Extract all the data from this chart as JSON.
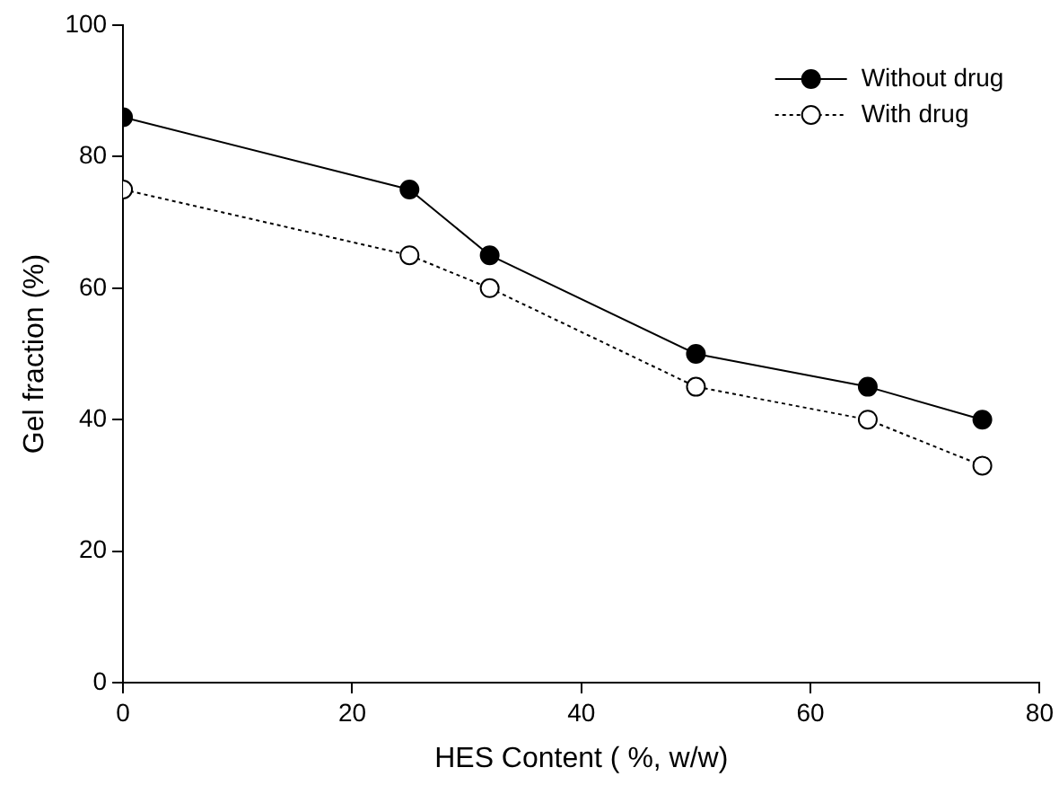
{
  "chart_data": {
    "type": "line",
    "xlabel": "HES Content ( %, w/w)",
    "ylabel": "Gel fraction (%)",
    "x": [
      0,
      25,
      32,
      50,
      65,
      75
    ],
    "series": [
      {
        "name": "Without drug",
        "color": "#000000",
        "values": [
          86,
          75,
          65,
          50,
          45,
          40
        ],
        "line_style": "solid"
      },
      {
        "name": "With drug",
        "color": "#000000",
        "values": [
          75,
          65,
          60,
          45,
          40,
          33
        ],
        "line_style": "dotted"
      }
    ],
    "xlim": [
      0,
      80
    ],
    "xticks": [
      0,
      20,
      40,
      60,
      80
    ],
    "ylim": [
      0,
      100
    ],
    "yticks": [
      0,
      20,
      40,
      60,
      80,
      100
    ],
    "grid": false,
    "legend": "top right",
    "marker": "circle"
  }
}
